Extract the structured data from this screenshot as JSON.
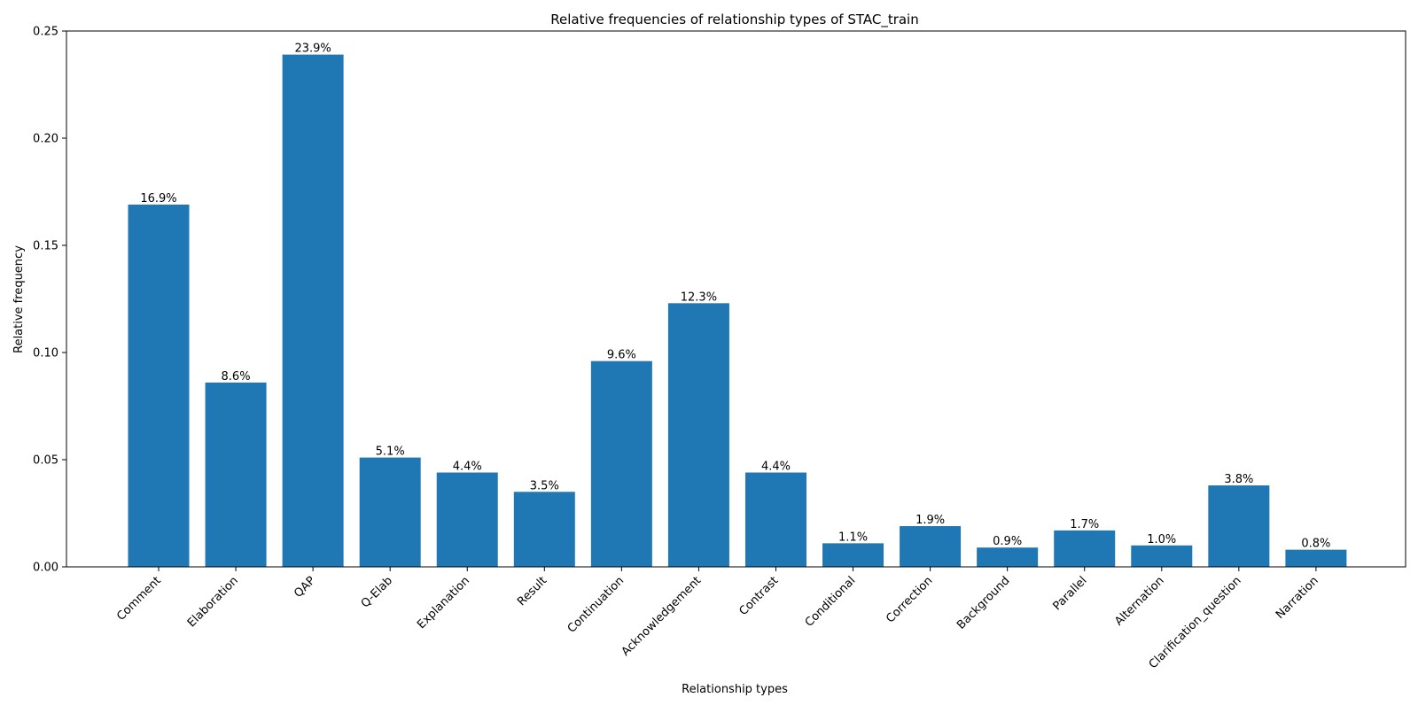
{
  "chart_data": {
    "type": "bar",
    "title": "Relative frequencies of relationship types of STAC_train",
    "xlabel": "Relationship types",
    "ylabel": "Relative frequency",
    "ylim": [
      0,
      0.25
    ],
    "yticks": [
      "0.00",
      "0.05",
      "0.10",
      "0.15",
      "0.20",
      "0.25"
    ],
    "grid": false,
    "color": "#1f77b4",
    "categories": [
      "Comment",
      "Elaboration",
      "QAP",
      "Q-Elab",
      "Explanation",
      "Result",
      "Continuation",
      "Acknowledgement",
      "Contrast",
      "Conditional",
      "Correction",
      "Background",
      "Parallel",
      "Alternation",
      "Clarification_question",
      "Narration"
    ],
    "values": [
      0.169,
      0.086,
      0.239,
      0.051,
      0.044,
      0.035,
      0.096,
      0.123,
      0.044,
      0.011,
      0.019,
      0.009,
      0.017,
      0.01,
      0.038,
      0.008
    ],
    "data_labels": [
      "16.9%",
      "8.6%",
      "23.9%",
      "5.1%",
      "4.4%",
      "3.5%",
      "9.6%",
      "12.3%",
      "4.4%",
      "1.1%",
      "1.9%",
      "0.9%",
      "1.7%",
      "1.0%",
      "3.8%",
      "0.8%"
    ]
  }
}
